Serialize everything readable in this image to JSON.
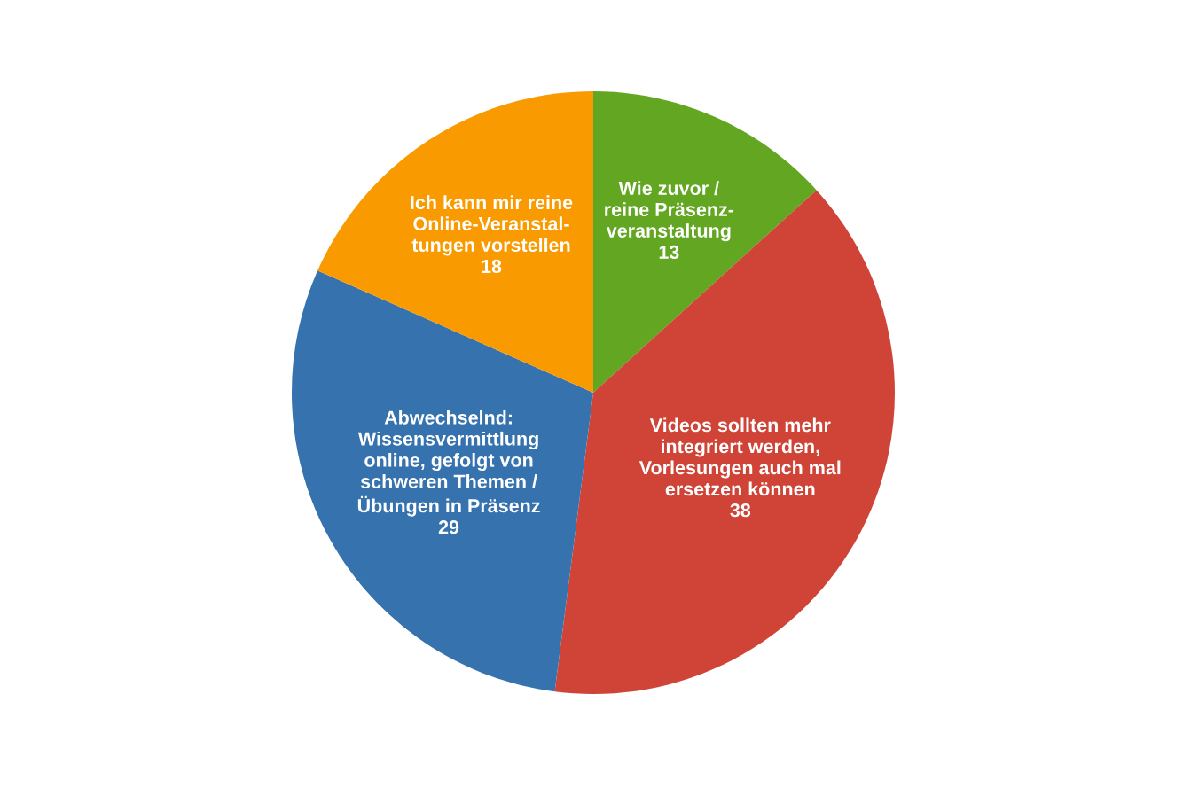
{
  "chart_data": {
    "type": "pie",
    "categories": [
      "Wie zuvor /\nreine Präsenz-\nveranstaltung",
      "Videos sollten mehr\nintegriert werden,\nVorlesungen auch mal\nersetzen können",
      "Abwechselnd:\nWissensvermittlung\nonline, gefolgt von\nschweren Themen /\nÜbungen in Präsenz",
      "Ich kann mir reine\nOnline-Veranstal-\ntungen vorstellen"
    ],
    "values": [
      13,
      38,
      29,
      18
    ],
    "colors": [
      "#63a621",
      "#d04437",
      "#3572ae",
      "#f99a00"
    ],
    "data_labels": true,
    "legend": false
  }
}
